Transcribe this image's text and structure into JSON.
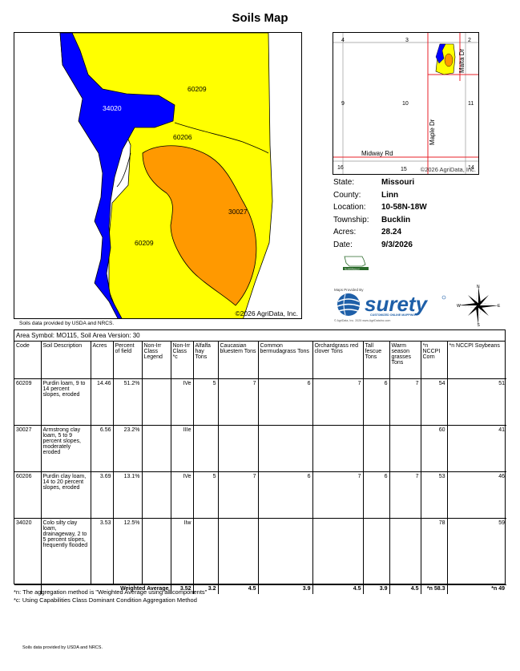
{
  "title": "Soils Map",
  "map": {
    "copyright": "©2026 AgriData, Inc.",
    "labels": [
      "34020",
      "60209",
      "60206",
      "30027",
      "60209"
    ]
  },
  "source_note": "Soils data provided by USDA and NRCS.",
  "locator": {
    "sections": [
      "4",
      "3",
      "2",
      "9",
      "10",
      "11",
      "16",
      "15",
      "14"
    ],
    "roads": [
      "Malta Dr",
      "Maple Dr",
      "Midway Rd"
    ],
    "copyright": "©2026 AgriData, Inc."
  },
  "info": [
    {
      "label": "State:",
      "value": "Missouri"
    },
    {
      "label": "County:",
      "value": "Linn"
    },
    {
      "label": "Location:",
      "value": "10-58N-18W"
    },
    {
      "label": "Township:",
      "value": "Bucklin"
    },
    {
      "label": "Acres:",
      "value": "28.24"
    },
    {
      "label": "Date:",
      "value": "9/3/2026"
    }
  ],
  "branding": {
    "maps_provided_by": "Maps Provided By",
    "logo_text": "surety",
    "logo_tagline": "CUSTOMIZED ONLINE MAPPING",
    "logo_sub": "© AgriData, Inc. 2025          www.AgriDataInc.com",
    "state_logo_text": "NorthMissouri",
    "compass": {
      "n": "N",
      "e": "E",
      "s": "S",
      "w": "W"
    }
  },
  "table": {
    "area_symbol": "Area Symbol: MO115, Soil Area Version: 30",
    "headers": [
      "Code",
      "Soil Description",
      "Acres",
      "Percent of field",
      "Non-Irr Class Legend",
      "Non-Irr Class *c",
      "Alfalfa hay Tons",
      "Caucasian bluestem Tons",
      "Common bermudagrass Tons",
      "Orchardgrass red clover Tons",
      "Tall fescue Tons",
      "Warm season grasses Tons",
      "*n NCCPI Corn",
      "*n NCCPI Soybeans"
    ],
    "rows": [
      {
        "code": "60209",
        "desc": "Purdin loam, 9 to 14 percent slopes, eroded",
        "acres": "14.46",
        "pct": "51.2%",
        "legend_color": "#ffff00",
        "cls": "IVe",
        "alfalfa": "5",
        "caucasian": "7",
        "bermuda": "6",
        "orchard": "7",
        "fescue": "6",
        "warm": "7",
        "corn": "54",
        "soy": "51"
      },
      {
        "code": "30027",
        "desc": "Armstrong clay loam, 5 to 9 percent slopes, moderately eroded",
        "acres": "6.56",
        "pct": "23.2%",
        "legend_color": "#ff9900",
        "cls": "IIIe",
        "alfalfa": "",
        "caucasian": "",
        "bermuda": "",
        "orchard": "",
        "fescue": "",
        "warm": "",
        "corn": "60",
        "soy": "41"
      },
      {
        "code": "60206",
        "desc": "Purdin clay loam, 14 to 20 percent slopes, eroded",
        "acres": "3.69",
        "pct": "13.1%",
        "legend_color": "#ffff00",
        "cls": "IVe",
        "alfalfa": "5",
        "caucasian": "7",
        "bermuda": "6",
        "orchard": "7",
        "fescue": "6",
        "warm": "7",
        "corn": "53",
        "soy": "46"
      },
      {
        "code": "34020",
        "desc": "Colo silty clay loam, drainageway, 2 to 5 percent slopes, frequently flooded",
        "acres": "3.53",
        "pct": "12.5%",
        "legend_color": "#0000ff",
        "cls": "IIw",
        "alfalfa": "",
        "caucasian": "",
        "bermuda": "",
        "orchard": "",
        "fescue": "",
        "warm": "",
        "corn": "78",
        "soy": "59"
      }
    ],
    "weighted": {
      "label": "Weighted Average",
      "cls": "3.52",
      "alfalfa": "3.2",
      "caucasian": "4.5",
      "bermuda": "3.9",
      "orchard": "4.5",
      "fescue": "3.9",
      "warm": "4.5",
      "corn": "*n 58.3",
      "soy": "*n 49"
    }
  },
  "footnotes": [
    "*n: The aggregation method is \"Weighted Average using all components\"",
    "*c: Using Capabilities Class Dominant Condition Aggregation Method"
  ],
  "page_footer": "Soils data provided by USDA and NRCS.",
  "colors": {
    "yellow": "#ffff00",
    "orange": "#ff9900",
    "blue": "#0000ff",
    "red_line": "#e8202a"
  }
}
